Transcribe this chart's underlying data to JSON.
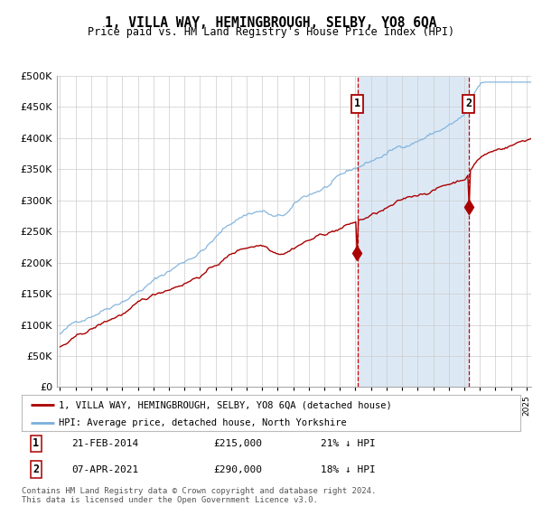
{
  "title": "1, VILLA WAY, HEMINGBROUGH, SELBY, YO8 6QA",
  "subtitle": "Price paid vs. HM Land Registry's House Price Index (HPI)",
  "red_label": "1, VILLA WAY, HEMINGBROUGH, SELBY, YO8 6QA (detached house)",
  "blue_label": "HPI: Average price, detached house, North Yorkshire",
  "annotation1": {
    "num": "1",
    "date": "21-FEB-2014",
    "price": "£215,000",
    "pct": "21% ↓ HPI"
  },
  "annotation2": {
    "num": "2",
    "date": "07-APR-2021",
    "price": "£290,000",
    "pct": "18% ↓ HPI"
  },
  "footer": "Contains HM Land Registry data © Crown copyright and database right 2024.\nThis data is licensed under the Open Government Licence v3.0.",
  "year_start": 1995,
  "year_end": 2025,
  "ylim_min": 0,
  "ylim_max": 500000,
  "yticks": [
    0,
    50000,
    100000,
    150000,
    200000,
    250000,
    300000,
    350000,
    400000,
    450000,
    500000
  ],
  "background_color": "#ffffff",
  "plot_bg_color": "#ffffff",
  "shade_color": "#dce9f5",
  "grid_color": "#cccccc",
  "red_line_color": "#aa0000",
  "blue_line_color": "#7aaedb",
  "vline_color": "#cc0000",
  "sale1_x": 2014.12,
  "sale2_x": 2021.27,
  "marker1_red_val": 215000,
  "marker2_red_val": 290000
}
